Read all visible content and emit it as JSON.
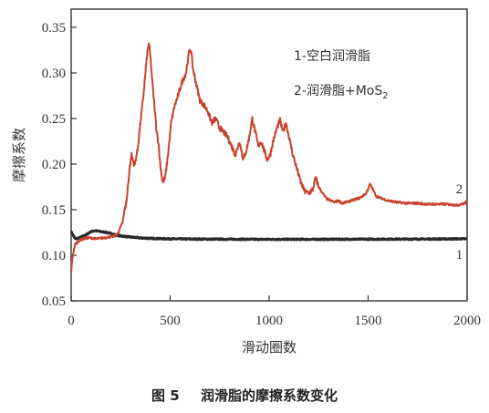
{
  "caption": {
    "number": "图 5",
    "text": "润滑脂的摩擦系数变化"
  },
  "colors": {
    "series1": "#2a2a2a",
    "series2": "#c8432d",
    "axis": "#333333"
  },
  "chart_data": {
    "type": "line",
    "title": "",
    "xlabel": "滑动圈数",
    "ylabel": "摩擦系数",
    "xlim": [
      0,
      2000
    ],
    "ylim": [
      0.05,
      0.37
    ],
    "xticks": [
      0,
      500,
      1000,
      1500,
      2000
    ],
    "xtick_labels": [
      "0",
      "500",
      "1000",
      "1500",
      "2000"
    ],
    "yticks": [
      0.05,
      0.1,
      0.15,
      0.2,
      0.25,
      0.3,
      0.35
    ],
    "ytick_labels": [
      "0.05",
      "0.10",
      "0.15",
      "0.20",
      "0.25",
      "0.30",
      "0.35"
    ],
    "grid": false,
    "legend": {
      "position": "top-right",
      "entries": [
        {
          "prefix": "1-空白润滑脂",
          "main": "",
          "sub": ""
        },
        {
          "prefix": "2-润滑脂+MoS",
          "main": "",
          "sub": "2"
        }
      ]
    },
    "series": [
      {
        "label": "1",
        "color": "#2a2a2a",
        "points": [
          [
            0,
            0.126
          ],
          [
            10,
            0.122
          ],
          [
            20,
            0.118
          ],
          [
            40,
            0.119
          ],
          [
            60,
            0.121
          ],
          [
            80,
            0.123
          ],
          [
            100,
            0.126
          ],
          [
            120,
            0.127
          ],
          [
            150,
            0.126
          ],
          [
            180,
            0.125
          ],
          [
            200,
            0.124
          ],
          [
            230,
            0.122
          ],
          [
            260,
            0.121
          ],
          [
            300,
            0.12
          ],
          [
            350,
            0.119
          ],
          [
            400,
            0.1185
          ],
          [
            500,
            0.118
          ],
          [
            600,
            0.1178
          ],
          [
            800,
            0.1176
          ],
          [
            1000,
            0.1175
          ],
          [
            1200,
            0.1175
          ],
          [
            1400,
            0.1176
          ],
          [
            1600,
            0.1177
          ],
          [
            1800,
            0.1178
          ],
          [
            1950,
            0.118
          ],
          [
            2000,
            0.118
          ]
        ]
      },
      {
        "label": "2",
        "color": "#c8432d",
        "points": [
          [
            0,
            0.082
          ],
          [
            8,
            0.1
          ],
          [
            20,
            0.112
          ],
          [
            40,
            0.116
          ],
          [
            60,
            0.118
          ],
          [
            80,
            0.119
          ],
          [
            100,
            0.119
          ],
          [
            130,
            0.118
          ],
          [
            160,
            0.119
          ],
          [
            190,
            0.12
          ],
          [
            220,
            0.121
          ],
          [
            240,
            0.125
          ],
          [
            260,
            0.138
          ],
          [
            280,
            0.16
          ],
          [
            295,
            0.195
          ],
          [
            305,
            0.21
          ],
          [
            320,
            0.198
          ],
          [
            335,
            0.215
          ],
          [
            350,
            0.245
          ],
          [
            365,
            0.275
          ],
          [
            375,
            0.3
          ],
          [
            385,
            0.322
          ],
          [
            392,
            0.333
          ],
          [
            400,
            0.318
          ],
          [
            410,
            0.29
          ],
          [
            420,
            0.265
          ],
          [
            430,
            0.24
          ],
          [
            440,
            0.225
          ],
          [
            450,
            0.2
          ],
          [
            462,
            0.18
          ],
          [
            475,
            0.185
          ],
          [
            490,
            0.212
          ],
          [
            505,
            0.245
          ],
          [
            520,
            0.262
          ],
          [
            540,
            0.275
          ],
          [
            560,
            0.29
          ],
          [
            580,
            0.3
          ],
          [
            595,
            0.322
          ],
          [
            605,
            0.326
          ],
          [
            615,
            0.305
          ],
          [
            630,
            0.29
          ],
          [
            650,
            0.27
          ],
          [
            670,
            0.265
          ],
          [
            690,
            0.258
          ],
          [
            710,
            0.245
          ],
          [
            730,
            0.25
          ],
          [
            750,
            0.24
          ],
          [
            770,
            0.235
          ],
          [
            790,
            0.23
          ],
          [
            810,
            0.22
          ],
          [
            830,
            0.21
          ],
          [
            850,
            0.225
          ],
          [
            870,
            0.205
          ],
          [
            885,
            0.215
          ],
          [
            900,
            0.23
          ],
          [
            915,
            0.25
          ],
          [
            930,
            0.235
          ],
          [
            945,
            0.22
          ],
          [
            960,
            0.225
          ],
          [
            975,
            0.215
          ],
          [
            990,
            0.205
          ],
          [
            1005,
            0.21
          ],
          [
            1020,
            0.225
          ],
          [
            1040,
            0.24
          ],
          [
            1055,
            0.248
          ],
          [
            1070,
            0.235
          ],
          [
            1085,
            0.245
          ],
          [
            1100,
            0.23
          ],
          [
            1120,
            0.21
          ],
          [
            1140,
            0.195
          ],
          [
            1160,
            0.18
          ],
          [
            1180,
            0.17
          ],
          [
            1200,
            0.168
          ],
          [
            1220,
            0.172
          ],
          [
            1235,
            0.185
          ],
          [
            1250,
            0.175
          ],
          [
            1270,
            0.168
          ],
          [
            1290,
            0.162
          ],
          [
            1310,
            0.16
          ],
          [
            1330,
            0.158
          ],
          [
            1350,
            0.16
          ],
          [
            1370,
            0.157
          ],
          [
            1400,
            0.159
          ],
          [
            1430,
            0.161
          ],
          [
            1460,
            0.163
          ],
          [
            1490,
            0.168
          ],
          [
            1510,
            0.178
          ],
          [
            1525,
            0.172
          ],
          [
            1540,
            0.165
          ],
          [
            1560,
            0.163
          ],
          [
            1600,
            0.16
          ],
          [
            1650,
            0.158
          ],
          [
            1700,
            0.157
          ],
          [
            1750,
            0.157
          ],
          [
            1800,
            0.156
          ],
          [
            1850,
            0.156
          ],
          [
            1900,
            0.156
          ],
          [
            1950,
            0.155
          ],
          [
            1990,
            0.157
          ],
          [
            2000,
            0.16
          ]
        ]
      }
    ]
  }
}
